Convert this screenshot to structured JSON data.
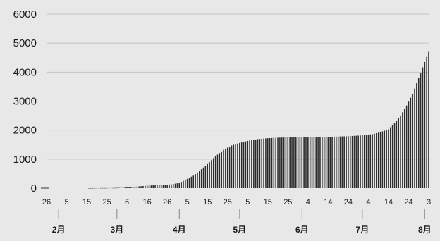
{
  "chart_data": {
    "type": "bar",
    "title": "",
    "xlabel": "",
    "ylabel": "",
    "ylim": [
      0,
      6000
    ],
    "yticks": [
      "0",
      "1000",
      "2000",
      "3000",
      "4000",
      "5000",
      "6000"
    ],
    "grid": true,
    "x_start": "2020-01-26",
    "x_end": "2020-08-03",
    "x_tick_labels": [
      {
        "date": "2020-01-26",
        "label": "26"
      },
      {
        "date": "2020-02-05",
        "label": "5"
      },
      {
        "date": "2020-02-15",
        "label": "15"
      },
      {
        "date": "2020-02-25",
        "label": "25"
      },
      {
        "date": "2020-03-06",
        "label": "6"
      },
      {
        "date": "2020-03-16",
        "label": "16"
      },
      {
        "date": "2020-03-26",
        "label": "26"
      },
      {
        "date": "2020-04-05",
        "label": "5"
      },
      {
        "date": "2020-04-15",
        "label": "15"
      },
      {
        "date": "2020-04-25",
        "label": "25"
      },
      {
        "date": "2020-05-05",
        "label": "5"
      },
      {
        "date": "2020-05-15",
        "label": "15"
      },
      {
        "date": "2020-05-25",
        "label": "25"
      },
      {
        "date": "2020-06-04",
        "label": "4"
      },
      {
        "date": "2020-06-14",
        "label": "14"
      },
      {
        "date": "2020-06-24",
        "label": "24"
      },
      {
        "date": "2020-07-04",
        "label": "4"
      },
      {
        "date": "2020-07-14",
        "label": "14"
      },
      {
        "date": "2020-07-24",
        "label": "24"
      },
      {
        "date": "2020-08-03",
        "label": "3"
      }
    ],
    "month_labels": [
      {
        "date": "2020-02-01",
        "label": "2月"
      },
      {
        "date": "2020-03-01",
        "label": "3月"
      },
      {
        "date": "2020-04-01",
        "label": "4月"
      },
      {
        "date": "2020-05-01",
        "label": "5月"
      },
      {
        "date": "2020-06-01",
        "label": "6月"
      },
      {
        "date": "2020-07-01",
        "label": "7月"
      },
      {
        "date": "2020-08-01",
        "label": "8月"
      }
    ],
    "series": [
      {
        "points": [
          [
            "2020-01-26",
            0
          ],
          [
            "2020-02-15",
            0
          ],
          [
            "2020-02-28",
            5
          ],
          [
            "2020-03-04",
            15
          ],
          [
            "2020-03-10",
            50
          ],
          [
            "2020-03-16",
            85
          ],
          [
            "2020-03-22",
            105
          ],
          [
            "2020-03-28",
            130
          ],
          [
            "2020-04-01",
            180
          ],
          [
            "2020-04-05",
            320
          ],
          [
            "2020-04-08",
            430
          ],
          [
            "2020-04-12",
            650
          ],
          [
            "2020-04-15",
            830
          ],
          [
            "2020-04-19",
            1100
          ],
          [
            "2020-04-23",
            1320
          ],
          [
            "2020-04-27",
            1470
          ],
          [
            "2020-05-01",
            1560
          ],
          [
            "2020-05-05",
            1630
          ],
          [
            "2020-05-10",
            1690
          ],
          [
            "2020-05-15",
            1720
          ],
          [
            "2020-05-20",
            1740
          ],
          [
            "2020-05-25",
            1750
          ],
          [
            "2020-06-04",
            1760
          ],
          [
            "2020-06-14",
            1770
          ],
          [
            "2020-06-24",
            1790
          ],
          [
            "2020-07-01",
            1820
          ],
          [
            "2020-07-06",
            1860
          ],
          [
            "2020-07-10",
            1930
          ],
          [
            "2020-07-14",
            2030
          ],
          [
            "2020-07-17",
            2250
          ],
          [
            "2020-07-20",
            2500
          ],
          [
            "2020-07-23",
            2850
          ],
          [
            "2020-07-26",
            3250
          ],
          [
            "2020-07-29",
            3800
          ],
          [
            "2020-08-01",
            4350
          ],
          [
            "2020-08-03",
            4700
          ]
        ]
      }
    ]
  }
}
